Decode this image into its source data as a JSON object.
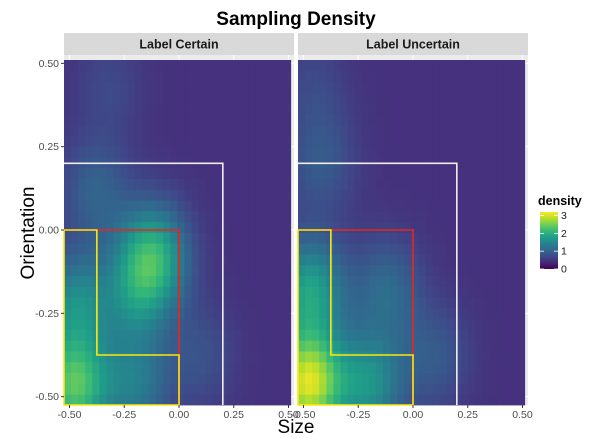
{
  "chart_data": {
    "type": "heatmap",
    "title": "Sampling Density",
    "xlabel": "Size",
    "ylabel": "Orientation",
    "xlim": [
      -0.525,
      0.525
    ],
    "ylim": [
      -0.525,
      0.525
    ],
    "x_ticks": [
      "-0.50",
      "-0.25",
      "0.00",
      "0.25",
      "0.50"
    ],
    "x_tick_values": [
      -0.5,
      -0.25,
      0.0,
      0.25,
      0.5
    ],
    "y_ticks": [
      "0.50",
      "0.25",
      "0.00",
      "-0.25",
      "-0.50"
    ],
    "y_tick_values": [
      0.5,
      0.25,
      0.0,
      -0.25,
      -0.5
    ],
    "grid": true,
    "legend": {
      "title": "density",
      "position": "right",
      "ticks": [
        "3",
        "2",
        "1",
        "0"
      ],
      "tick_values": [
        3,
        2,
        1,
        0
      ],
      "range": [
        0,
        3.2
      ],
      "colormap": "viridis"
    },
    "panels": [
      {
        "label": "Label Certain",
        "density_peaks": [
          {
            "x": -0.48,
            "y": -0.47,
            "density": 2.3
          },
          {
            "x": -0.47,
            "y": -0.22,
            "density": 1.5
          },
          {
            "x": -0.12,
            "y": -0.08,
            "density": 2.0
          },
          {
            "x": -0.2,
            "y": -0.2,
            "density": 1.2
          },
          {
            "x": -0.2,
            "y": -0.46,
            "density": 1.3
          },
          {
            "x": -0.38,
            "y": 0.12,
            "density": 1.0
          },
          {
            "x": -0.32,
            "y": 0.43,
            "density": 0.7
          },
          {
            "x": 0.1,
            "y": -0.38,
            "density": 0.8
          }
        ],
        "baseline_density": 0.45
      },
      {
        "label": "Label Uncertain",
        "density_peaks": [
          {
            "x": -0.48,
            "y": -0.46,
            "density": 3.0
          },
          {
            "x": -0.47,
            "y": -0.18,
            "density": 1.8
          },
          {
            "x": -0.2,
            "y": -0.46,
            "density": 1.6
          },
          {
            "x": -0.12,
            "y": -0.18,
            "density": 1.1
          },
          {
            "x": -0.42,
            "y": 0.2,
            "density": 0.9
          },
          {
            "x": -0.45,
            "y": 0.43,
            "density": 0.7
          },
          {
            "x": 0.1,
            "y": -0.38,
            "density": 0.9
          }
        ],
        "baseline_density": 0.45
      }
    ],
    "region_outlines": [
      {
        "color": "#f0ecf0",
        "description_points": [
          [
            -0.525,
            0.2
          ],
          [
            0.2,
            0.2
          ],
          [
            0.2,
            -0.525
          ]
        ]
      },
      {
        "color": "#e8281c",
        "description_points": [
          [
            -0.525,
            0.0
          ],
          [
            0.0,
            0.0
          ],
          [
            0.0,
            -0.525
          ]
        ]
      },
      {
        "color": "#ffe60f",
        "description_points": [
          [
            -0.525,
            0.0
          ],
          [
            -0.375,
            0.0
          ],
          [
            -0.375,
            -0.375
          ],
          [
            0.0,
            -0.375
          ],
          [
            0.0,
            -0.525
          ],
          [
            -0.525,
            -0.525
          ]
        ]
      }
    ]
  }
}
